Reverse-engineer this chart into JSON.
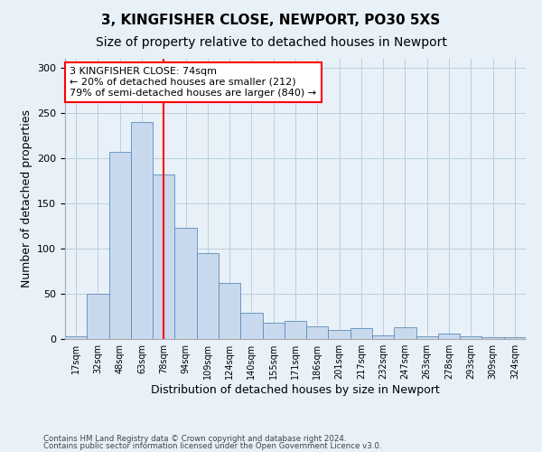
{
  "title_line1": "3, KINGFISHER CLOSE, NEWPORT, PO30 5XS",
  "title_line2": "Size of property relative to detached houses in Newport",
  "xlabel": "Distribution of detached houses by size in Newport",
  "ylabel": "Number of detached properties",
  "categories": [
    "17sqm",
    "32sqm",
    "48sqm",
    "63sqm",
    "78sqm",
    "94sqm",
    "109sqm",
    "124sqm",
    "140sqm",
    "155sqm",
    "171sqm",
    "186sqm",
    "201sqm",
    "217sqm",
    "232sqm",
    "247sqm",
    "263sqm",
    "278sqm",
    "293sqm",
    "309sqm",
    "324sqm"
  ],
  "values": [
    3,
    50,
    207,
    240,
    182,
    123,
    95,
    62,
    29,
    18,
    20,
    14,
    10,
    12,
    4,
    13,
    3,
    6,
    3,
    2,
    2
  ],
  "bar_color": "#c9d9ed",
  "bar_edge_color": "#5b8db8",
  "grid_color": "#b8cfe0",
  "bg_color": "#e8f0f8",
  "vline_x_index": 4,
  "vline_color": "red",
  "annotation_text": "3 KINGFISHER CLOSE: 74sqm\n← 20% of detached houses are smaller (212)\n79% of semi-detached houses are larger (840) →",
  "annotation_box_color": "white",
  "annotation_box_edge": "red",
  "footnote1": "Contains HM Land Registry data © Crown copyright and database right 2024.",
  "footnote2": "Contains public sector information licensed under the Open Government Licence v3.0.",
  "ylim": [
    0,
    310
  ],
  "title_fontsize": 11,
  "subtitle_fontsize": 10,
  "tick_fontsize": 7,
  "label_fontsize": 9,
  "annotation_fontsize": 8
}
